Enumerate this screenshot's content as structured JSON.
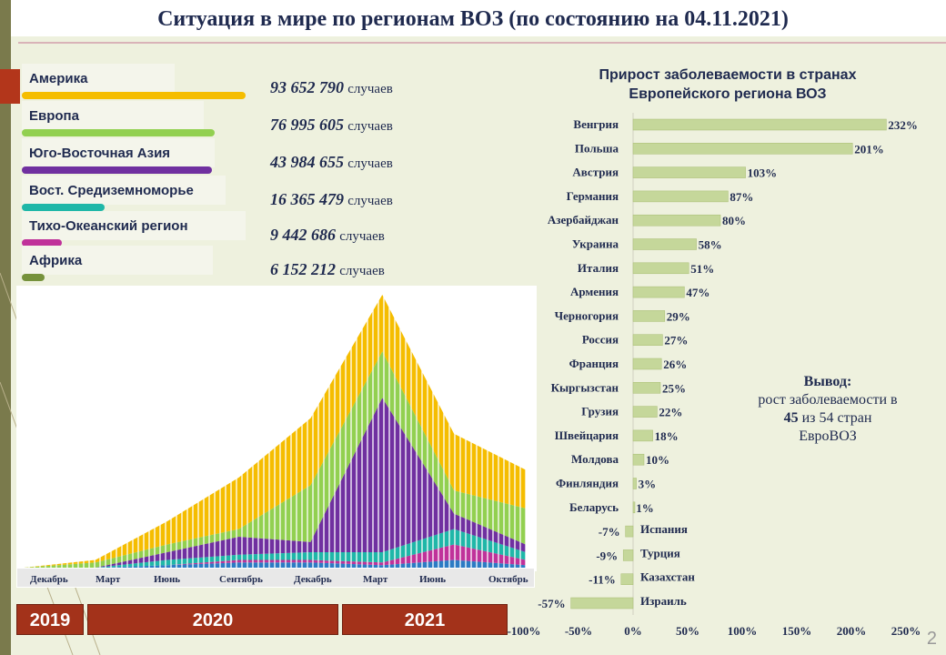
{
  "title": "Ситуация в мире по регионам ВОЗ (по состоянию на 04.11.2021)",
  "regions": [
    {
      "label": "Америка",
      "count": "93 652 790",
      "unit": "случаев",
      "color": "#f5bd00",
      "bar_fraction": 1.0
    },
    {
      "label": "Европа",
      "count": "76 995 605",
      "unit": "случаев",
      "color": "#92d050",
      "bar_fraction": 0.86
    },
    {
      "label": "Юго-Восточная Азия",
      "count": "43 984 655",
      "unit": "случаев",
      "color": "#7030a0",
      "bar_fraction": 0.85
    },
    {
      "label": "Вост. Средиземноморье",
      "count": "16 365 479",
      "unit": "случаев",
      "color": "#1fb7a8",
      "bar_fraction": 0.37
    },
    {
      "label": "Тихо-Океанский регион",
      "count": "9 442 686",
      "unit": "случаев",
      "color": "#c0329a",
      "bar_fraction": 0.18
    },
    {
      "label": "Африка",
      "count": "6 152 212",
      "unit": "случаев",
      "color": "#76923c",
      "bar_fraction": 0.1
    }
  ],
  "timeline": {
    "months": [
      "Декабрь",
      "Март",
      "Июнь",
      "Сентябрь",
      "Декабрь",
      "Март",
      "Июнь",
      "Октябрь"
    ],
    "years": [
      "2019",
      "2020",
      "2021"
    ]
  },
  "bar_title_line1": "Прирост  заболеваемости в странах",
  "bar_title_line2": "Европейского региона ВОЗ",
  "conclusion": {
    "heading": "Вывод:",
    "line1": "рост заболеваемости в",
    "line2_num": "45",
    "line2_rest": "из 54 стран",
    "line3": "ЕвроВОЗ"
  },
  "page_number": "2",
  "chart_data": [
    {
      "type": "area",
      "title": "",
      "x": [
        "Декабрь",
        "Март",
        "Июнь",
        "Сентябрь",
        "Декабрь",
        "Март",
        "Июнь",
        "Октябрь"
      ],
      "series": [
        {
          "name": "Америка",
          "color": "#f5bd00",
          "values": [
            0,
            1,
            9,
            20,
            26,
            22,
            22,
            15
          ]
        },
        {
          "name": "Европа",
          "color": "#92d050",
          "values": [
            0,
            2,
            3,
            3,
            22,
            18,
            9,
            14
          ]
        },
        {
          "name": "Юго-Восточная Азия",
          "color": "#7030a0",
          "values": [
            0,
            0,
            3,
            7,
            4,
            60,
            6,
            3
          ]
        },
        {
          "name": "Вост. Средиземноморье",
          "color": "#1fb7a8",
          "values": [
            0,
            0,
            2,
            2,
            3,
            4,
            6,
            3
          ]
        },
        {
          "name": "Тихо-Океанский регион",
          "color": "#c0329a",
          "values": [
            0,
            0,
            0,
            1,
            1,
            1,
            6,
            2
          ]
        },
        {
          "name": "Африка",
          "color": "#2c7bc4",
          "values": [
            0,
            0,
            1,
            2,
            2,
            1,
            3,
            1
          ]
        }
      ]
    },
    {
      "type": "bar",
      "orientation": "horizontal",
      "title": "Прирост  заболеваемости в странах Европейского региона ВОЗ",
      "categories": [
        "Венгрия",
        "Польша",
        "Австрия",
        "Германия",
        "Азербайджан",
        "Украина",
        "Италия",
        "Армения",
        "Черногория",
        "Россия",
        "Франция",
        "Кыргызстан",
        "Грузия",
        "Швейцария",
        "Молдова",
        "Финляндия",
        "Беларусь",
        "Испания",
        "Турция",
        "Казахстан",
        "Израиль"
      ],
      "values": [
        232,
        201,
        103,
        87,
        80,
        58,
        51,
        47,
        29,
        27,
        26,
        25,
        22,
        18,
        10,
        3,
        1,
        -7,
        -9,
        -11,
        -57
      ],
      "labels": [
        "232%",
        "201%",
        "103%",
        "87%",
        "80%",
        "58%",
        "51%",
        "47%",
        "29%",
        "27%",
        "26%",
        "25%",
        "22%",
        "18%",
        "10%",
        "3%",
        "1%",
        "-7%",
        "-9%",
        "-11%",
        "-57%"
      ],
      "xticks": [
        "-100%",
        "-50%",
        "0%",
        "50%",
        "100%",
        "150%",
        "200%",
        "250%"
      ],
      "xlim": [
        -100,
        250
      ],
      "color": "#c5d79a"
    }
  ]
}
